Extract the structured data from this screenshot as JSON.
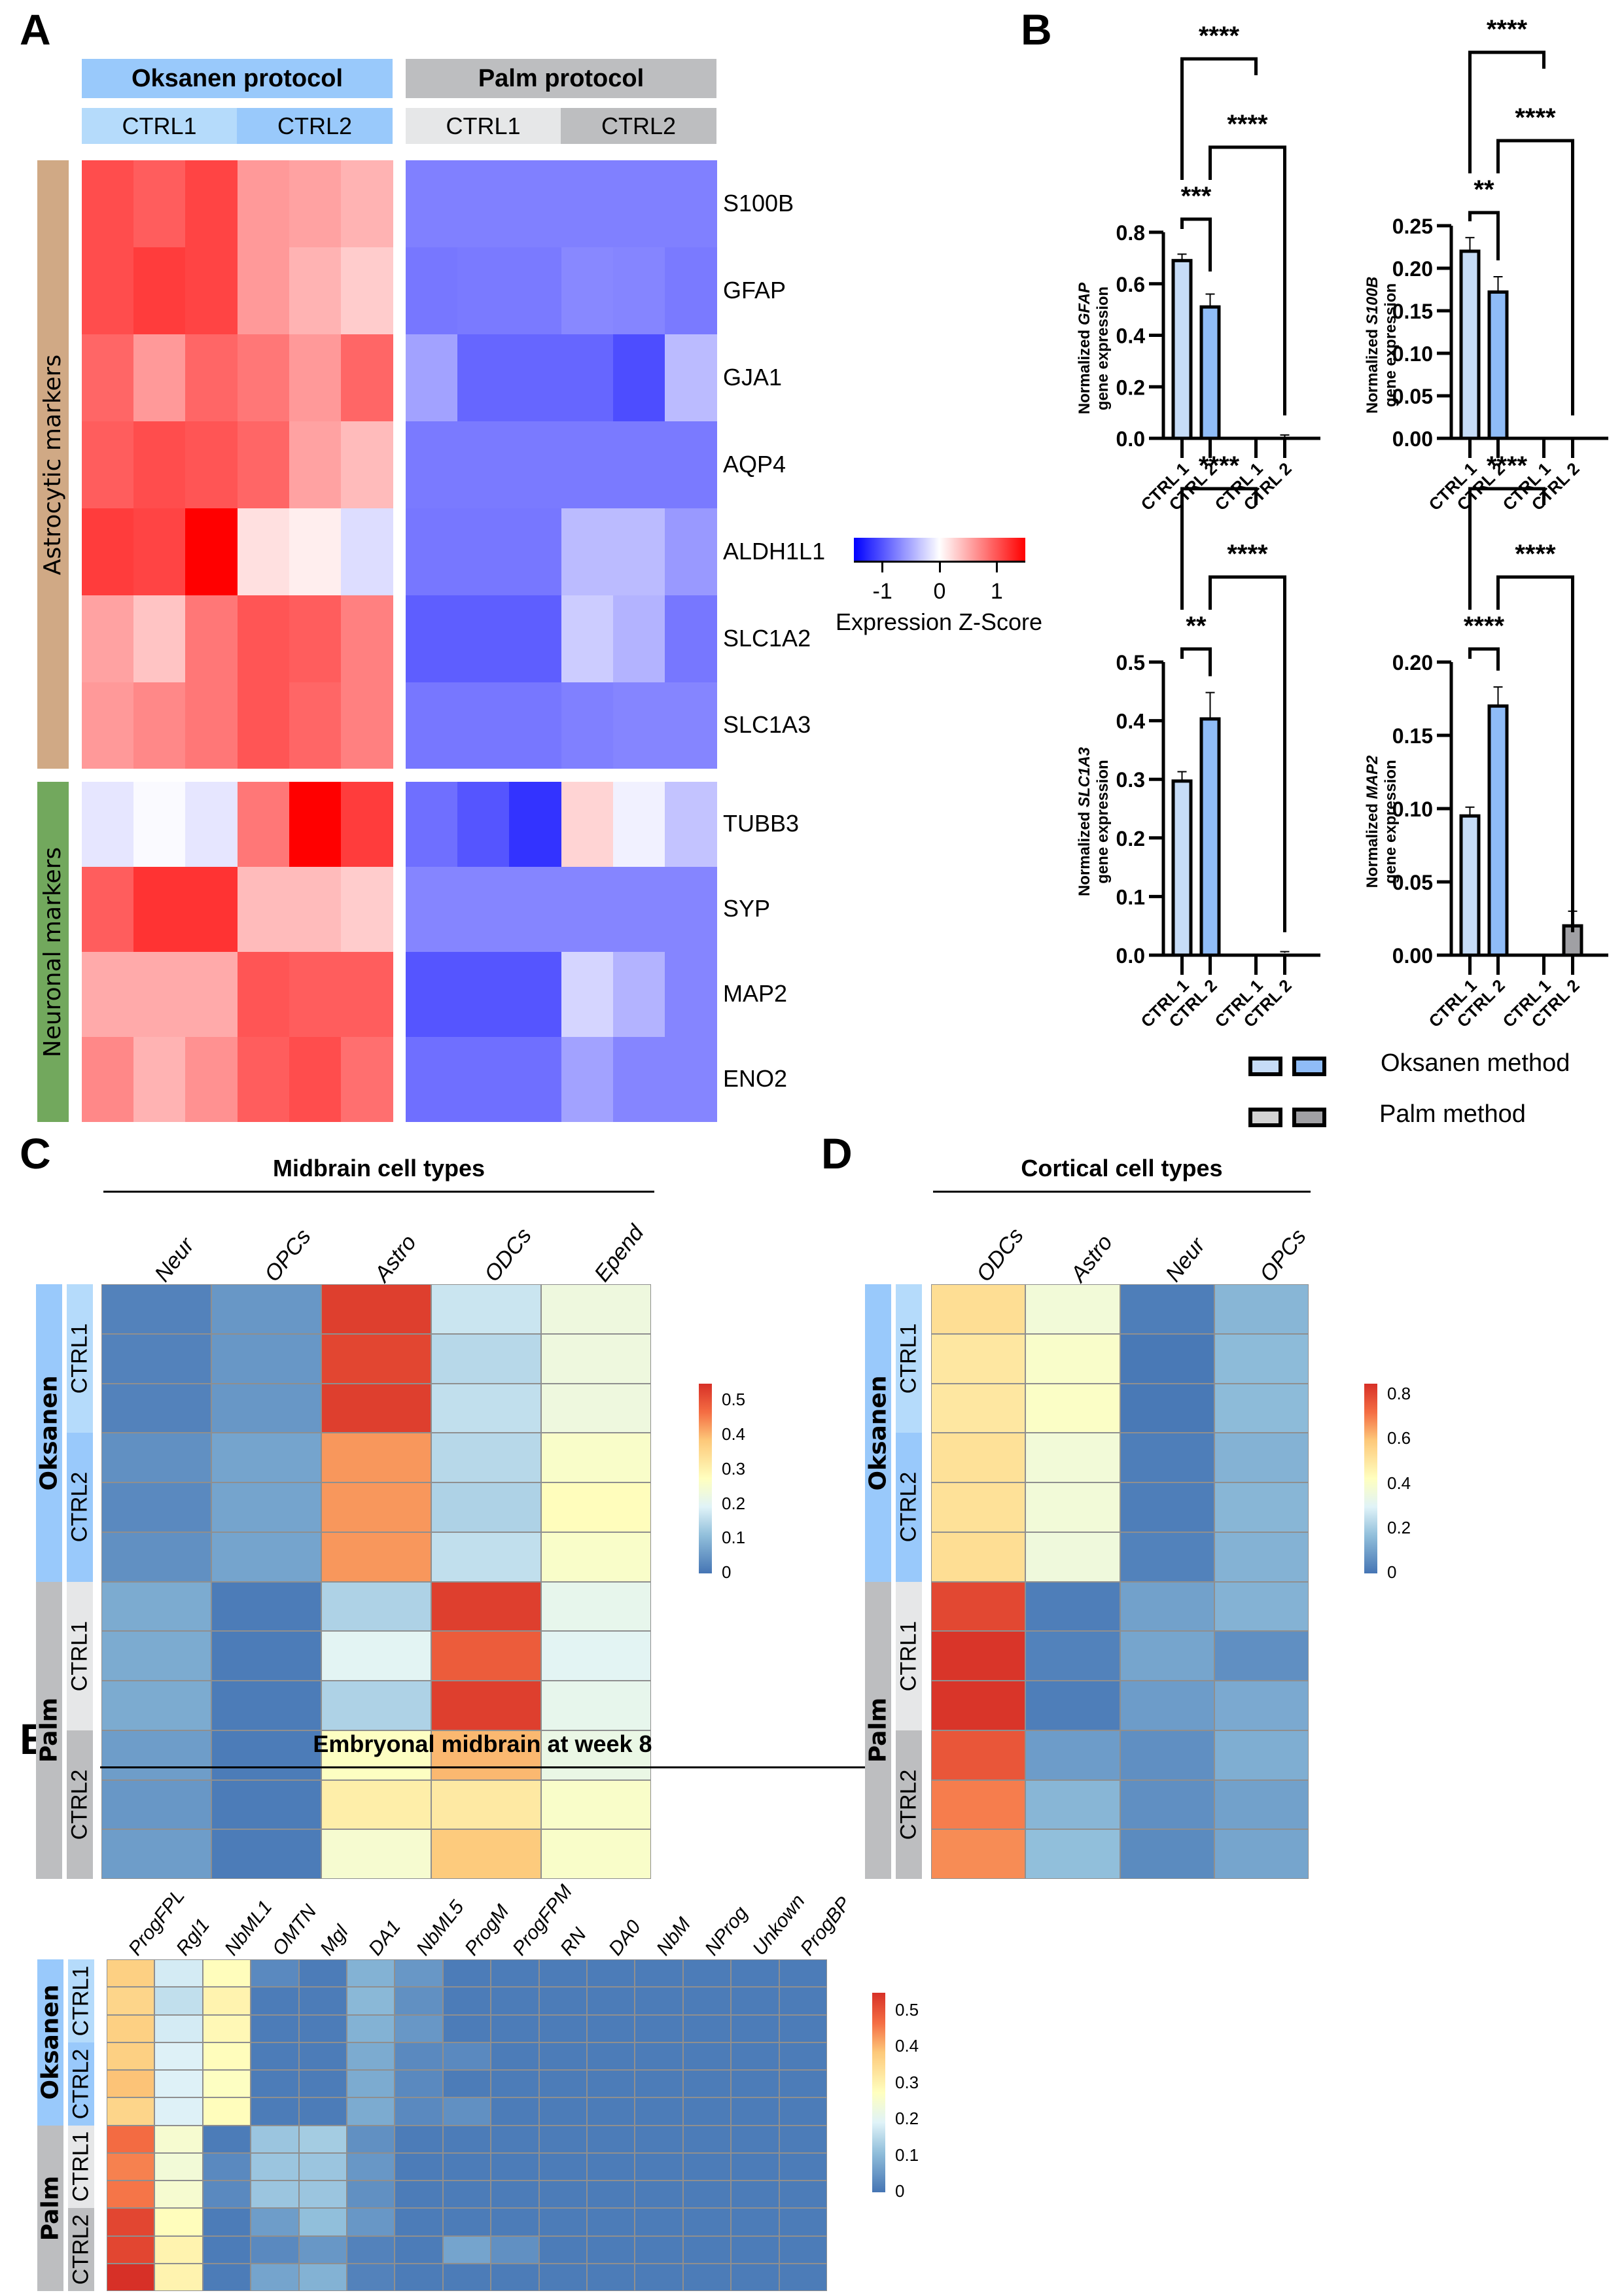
{
  "panels": {
    "A": "A",
    "B": "B",
    "C": "C",
    "D": "D",
    "E": "E"
  },
  "panelA": {
    "group_headers": [
      "Oksanen protocol",
      "Palm protocol"
    ],
    "sub_headers": [
      "CTRL1",
      "CTRL2",
      "CTRL1",
      "CTRL2"
    ],
    "row_groups": [
      "Astrocytic markers",
      "Neuronal markers"
    ],
    "genes": [
      "S100B",
      "GFAP",
      "GJA1",
      "AQP4",
      "ALDH1L1",
      "SLC1A2",
      "SLC1A3",
      "TUBB3",
      "SYP",
      "MAP2",
      "ENO2"
    ],
    "colorbar": {
      "ticks": [
        "-1",
        "0",
        "1"
      ],
      "title": "Expression Z-Score",
      "low": "#0000ff",
      "mid": "#ffffff",
      "high": "#ff0000"
    }
  },
  "panelB": {
    "legend": {
      "oksanen": "Oksanen method",
      "palm": "Palm method"
    },
    "colors": {
      "oksanen1": "#c6dcf7",
      "oksanen2": "#8fbcf7",
      "palm1": "#d3d3d3",
      "palm2": "#a0a0a4"
    }
  },
  "panelC": {
    "title": "Midbrain cell types",
    "group_labels": [
      "Oksanen",
      "Palm"
    ],
    "sub_labels": [
      "CTRL1",
      "CTRL2",
      "CTRL1",
      "CTRL2"
    ]
  },
  "panelD": {
    "title": "Cortical cell types",
    "group_labels": [
      "Oksanen",
      "Palm"
    ],
    "sub_labels": [
      "CTRL1",
      "CTRL2",
      "CTRL1",
      "CTRL2"
    ]
  },
  "panelE": {
    "title": "Embryonal midbrain at week 8",
    "group_labels": [
      "Oksanen",
      "Palm"
    ],
    "sub_labels": [
      "CTRL1",
      "CTRL2",
      "CTRL1",
      "CTRL2"
    ]
  },
  "chart_data": [
    {
      "id": "A",
      "type": "heatmap",
      "title": "",
      "columns": [
        "Oksanen CTRL1 r1",
        "Oksanen CTRL1 r2",
        "Oksanen CTRL1 r3",
        "Oksanen CTRL2 r1",
        "Oksanen CTRL2 r2",
        "Oksanen CTRL2 r3",
        "Palm CTRL1 r1",
        "Palm CTRL1 r2",
        "Palm CTRL1 r3",
        "Palm CTRL2 r1",
        "Palm CTRL2 r2",
        "Palm CTRL2 r3"
      ],
      "rows": [
        "S100B",
        "GFAP",
        "GJA1",
        "AQP4",
        "ALDH1L1",
        "SLC1A2",
        "SLC1A3",
        "TUBB3",
        "SYP",
        "MAP2",
        "ENO2"
      ],
      "colorbar_label": "Expression Z-Score",
      "range": [
        -1.5,
        1.5
      ],
      "values": [
        [
          1.05,
          0.95,
          1.1,
          0.6,
          0.55,
          0.45,
          -0.75,
          -0.75,
          -0.75,
          -0.75,
          -0.75,
          -0.75
        ],
        [
          1.05,
          1.15,
          1.1,
          0.6,
          0.45,
          0.3,
          -0.8,
          -0.78,
          -0.78,
          -0.7,
          -0.72,
          -0.78
        ],
        [
          0.9,
          0.6,
          0.9,
          0.8,
          0.6,
          0.9,
          -0.55,
          -0.9,
          -0.9,
          -0.9,
          -1.05,
          -0.4
        ],
        [
          0.95,
          1.05,
          1.0,
          0.9,
          0.55,
          0.4,
          -0.78,
          -0.78,
          -0.78,
          -0.78,
          -0.78,
          -0.78
        ],
        [
          1.15,
          1.1,
          1.5,
          0.18,
          0.1,
          -0.2,
          -0.8,
          -0.8,
          -0.8,
          -0.4,
          -0.4,
          -0.6
        ],
        [
          0.55,
          0.35,
          0.8,
          1.0,
          0.95,
          0.75,
          -0.95,
          -0.95,
          -0.95,
          -0.3,
          -0.45,
          -0.8
        ],
        [
          0.6,
          0.7,
          0.8,
          1.0,
          0.9,
          0.75,
          -0.8,
          -0.8,
          -0.8,
          -0.75,
          -0.72,
          -0.72
        ],
        [
          -0.15,
          -0.03,
          -0.15,
          0.8,
          1.5,
          1.15,
          -0.85,
          -1.0,
          -1.2,
          0.25,
          -0.08,
          -0.35
        ],
        [
          0.95,
          1.2,
          1.2,
          0.4,
          0.4,
          0.3,
          -0.72,
          -0.72,
          -0.72,
          -0.72,
          -0.72,
          -0.72
        ],
        [
          0.5,
          0.5,
          0.5,
          1.0,
          0.95,
          0.95,
          -1.0,
          -1.0,
          -1.0,
          -0.25,
          -0.45,
          -0.72
        ],
        [
          0.7,
          0.45,
          0.65,
          0.95,
          1.05,
          0.85,
          -0.85,
          -0.85,
          -0.85,
          -0.55,
          -0.72,
          -0.72
        ]
      ]
    },
    {
      "id": "B-GFAP",
      "type": "bar",
      "categories": [
        "CTRL 1",
        "CTRL 2",
        "CTRL 1",
        "CTRL 2"
      ],
      "groups": [
        "Oksanen",
        "Oksanen",
        "Palm",
        "Palm"
      ],
      "values": [
        0.69,
        0.51,
        0.0,
        0.003
      ],
      "errors": [
        0.025,
        0.05,
        0.0,
        0.01
      ],
      "ylabel": "Normalized GFAP gene expression",
      "ylabel_italic": "GFAP",
      "ylim": [
        0,
        0.8
      ],
      "yticks": [
        "0.0",
        "0.2",
        "0.4",
        "0.6",
        "0.8"
      ],
      "significance": [
        {
          "from": 0,
          "to": 1,
          "label": "***"
        },
        {
          "from": 0,
          "to": 2,
          "label": "****"
        },
        {
          "from": 1,
          "to": 3,
          "label": "****"
        }
      ]
    },
    {
      "id": "B-S100B",
      "type": "bar",
      "categories": [
        "CTRL 1",
        "CTRL 2",
        "CTRL 1",
        "CTRL 2"
      ],
      "groups": [
        "Oksanen",
        "Oksanen",
        "Palm",
        "Palm"
      ],
      "values": [
        0.22,
        0.172,
        0.0,
        0.0
      ],
      "errors": [
        0.016,
        0.018,
        0.0,
        0.0
      ],
      "ylabel": "Normalized S100B gene expression",
      "ylabel_italic": "S100B",
      "ylim": [
        0,
        0.25
      ],
      "yticks": [
        "0.00",
        "0.05",
        "0.10",
        "0.15",
        "0.20",
        "0.25"
      ],
      "significance": [
        {
          "from": 0,
          "to": 1,
          "label": "**"
        },
        {
          "from": 0,
          "to": 2,
          "label": "****"
        },
        {
          "from": 1,
          "to": 3,
          "label": "****"
        }
      ]
    },
    {
      "id": "B-SLC1A3",
      "type": "bar",
      "categories": [
        "CTRL 1",
        "CTRL 2",
        "CTRL 1",
        "CTRL 2"
      ],
      "groups": [
        "Oksanen",
        "Oksanen",
        "Palm",
        "Palm"
      ],
      "values": [
        0.297,
        0.403,
        0.0,
        0.004
      ],
      "errors": [
        0.016,
        0.045,
        0.0,
        0.002
      ],
      "ylabel": "Normalized SLC1A3 gene expression",
      "ylabel_italic": "SLC1A3",
      "ylim": [
        0,
        0.5
      ],
      "yticks": [
        "0.0",
        "0.1",
        "0.2",
        "0.3",
        "0.4",
        "0.5"
      ],
      "significance": [
        {
          "from": 0,
          "to": 1,
          "label": "**"
        },
        {
          "from": 0,
          "to": 2,
          "label": "****"
        },
        {
          "from": 1,
          "to": 3,
          "label": "****"
        }
      ]
    },
    {
      "id": "B-MAP2",
      "type": "bar",
      "categories": [
        "CTRL 1",
        "CTRL 2",
        "CTRL 1",
        "CTRL 2"
      ],
      "groups": [
        "Oksanen",
        "Oksanen",
        "Palm",
        "Palm"
      ],
      "values": [
        0.095,
        0.17,
        0.0,
        0.02
      ],
      "errors": [
        0.006,
        0.013,
        0.0,
        0.01
      ],
      "ylabel": "Normalized MAP2 gene expression",
      "ylabel_italic": "MAP2",
      "ylim": [
        0,
        0.2
      ],
      "yticks": [
        "0.00",
        "0.05",
        "0.10",
        "0.15",
        "0.20"
      ],
      "significance": [
        {
          "from": 0,
          "to": 1,
          "label": "****"
        },
        {
          "from": 0,
          "to": 2,
          "label": "****"
        },
        {
          "from": 1,
          "to": 3,
          "label": "****"
        }
      ]
    },
    {
      "id": "C",
      "type": "heatmap",
      "title": "Midbrain cell types",
      "columns": [
        "Neur",
        "OPCs",
        "Astro",
        "ODCs",
        "Epend"
      ],
      "rows": [
        "Oksanen CTRL1 r1",
        "Oksanen CTRL1 r2",
        "Oksanen CTRL1 r3",
        "Oksanen CTRL2 r1",
        "Oksanen CTRL2 r2",
        "Oksanen CTRL2 r3",
        "Palm CTRL1 r1",
        "Palm CTRL1 r2",
        "Palm CTRL1 r3",
        "Palm CTRL2 r1",
        "Palm CTRL2 r2",
        "Palm CTRL2 r3"
      ],
      "colorbar_ticks": [
        "0",
        "0.1",
        "0.2",
        "0.3",
        "0.4",
        "0.5"
      ],
      "range": [
        0,
        0.55
      ],
      "values": [
        [
          0.02,
          0.05,
          0.53,
          0.17,
          0.23
        ],
        [
          0.02,
          0.05,
          0.52,
          0.15,
          0.23
        ],
        [
          0.02,
          0.05,
          0.53,
          0.16,
          0.23
        ],
        [
          0.04,
          0.07,
          0.43,
          0.15,
          0.26
        ],
        [
          0.03,
          0.07,
          0.43,
          0.14,
          0.28
        ],
        [
          0.04,
          0.07,
          0.43,
          0.16,
          0.26
        ],
        [
          0.08,
          0.01,
          0.14,
          0.53,
          0.21
        ],
        [
          0.08,
          0.01,
          0.2,
          0.49,
          0.2
        ],
        [
          0.08,
          0.01,
          0.14,
          0.53,
          0.21
        ],
        [
          0.06,
          0.01,
          0.27,
          0.4,
          0.22
        ],
        [
          0.05,
          0.01,
          0.31,
          0.32,
          0.26
        ],
        [
          0.06,
          0.01,
          0.25,
          0.38,
          0.26
        ]
      ]
    },
    {
      "id": "D",
      "type": "heatmap",
      "title": "Cortical cell types",
      "columns": [
        "ODCs",
        "Astro",
        "Neur",
        "OPCs"
      ],
      "rows": [
        "Oksanen CTRL1 r1",
        "Oksanen CTRL1 r2",
        "Oksanen CTRL1 r3",
        "Oksanen CTRL2 r1",
        "Oksanen CTRL2 r2",
        "Oksanen CTRL2 r3",
        "Palm CTRL1 r1",
        "Palm CTRL1 r2",
        "Palm CTRL1 r3",
        "Palm CTRL2 r1",
        "Palm CTRL2 r2",
        "Palm CTRL2 r3"
      ],
      "colorbar_ticks": [
        "0",
        "0.2",
        "0.4",
        "0.6",
        "0.8"
      ],
      "range": [
        0,
        0.85
      ],
      "values": [
        [
          0.53,
          0.37,
          0.02,
          0.15
        ],
        [
          0.5,
          0.4,
          0.01,
          0.16
        ],
        [
          0.5,
          0.41,
          0.01,
          0.16
        ],
        [
          0.52,
          0.37,
          0.02,
          0.14
        ],
        [
          0.52,
          0.37,
          0.02,
          0.15
        ],
        [
          0.53,
          0.36,
          0.03,
          0.14
        ],
        [
          0.8,
          0.02,
          0.1,
          0.14
        ],
        [
          0.84,
          0.03,
          0.11,
          0.06
        ],
        [
          0.84,
          0.02,
          0.09,
          0.12
        ],
        [
          0.77,
          0.09,
          0.06,
          0.13
        ],
        [
          0.7,
          0.15,
          0.06,
          0.1
        ],
        [
          0.68,
          0.17,
          0.05,
          0.11
        ]
      ]
    },
    {
      "id": "E",
      "type": "heatmap",
      "title": "Embryonal midbrain at week 8",
      "columns": [
        "ProgFPL",
        "Rgl1",
        "NbML1",
        "OMTN",
        "Mgl",
        "DA1",
        "NbML5",
        "ProgM",
        "ProgFPM",
        "RN",
        "DA0",
        "NbM",
        "NProg",
        "Unkown",
        "ProgBP"
      ],
      "rows": [
        "Oksanen CTRL1 r1",
        "Oksanen CTRL1 r2",
        "Oksanen CTRL1 r3",
        "Oksanen CTRL2 r1",
        "Oksanen CTRL2 r2",
        "Oksanen CTRL2 r3",
        "Palm CTRL1 r1",
        "Palm CTRL1 r2",
        "Palm CTRL1 r3",
        "Palm CTRL2 r1",
        "Palm CTRL2 r2",
        "Palm CTRL2 r3"
      ],
      "colorbar_ticks": [
        "0",
        "0.1",
        "0.2",
        "0.3",
        "0.4",
        "0.5"
      ],
      "range": [
        0,
        0.55
      ],
      "values": [
        [
          0.37,
          0.18,
          0.28,
          0.03,
          0.01,
          0.09,
          0.05,
          0.01,
          0.01,
          0.01,
          0.01,
          0.01,
          0.01,
          0.01,
          0.01
        ],
        [
          0.36,
          0.16,
          0.3,
          0.01,
          0.01,
          0.1,
          0.04,
          0.01,
          0.01,
          0.01,
          0.01,
          0.01,
          0.01,
          0.01,
          0.01
        ],
        [
          0.37,
          0.18,
          0.29,
          0.01,
          0.01,
          0.09,
          0.05,
          0.01,
          0.01,
          0.01,
          0.01,
          0.01,
          0.01,
          0.01,
          0.01
        ],
        [
          0.37,
          0.19,
          0.28,
          0.01,
          0.01,
          0.08,
          0.03,
          0.03,
          0.01,
          0.01,
          0.01,
          0.01,
          0.01,
          0.01,
          0.01
        ],
        [
          0.39,
          0.19,
          0.27,
          0.01,
          0.01,
          0.08,
          0.03,
          0.01,
          0.01,
          0.01,
          0.01,
          0.01,
          0.01,
          0.01,
          0.01
        ],
        [
          0.36,
          0.19,
          0.28,
          0.01,
          0.01,
          0.08,
          0.03,
          0.04,
          0.01,
          0.01,
          0.01,
          0.01,
          0.01,
          0.01,
          0.01
        ],
        [
          0.47,
          0.25,
          0.01,
          0.12,
          0.13,
          0.04,
          0.01,
          0.01,
          0.01,
          0.01,
          0.01,
          0.01,
          0.01,
          0.01,
          0.01
        ],
        [
          0.45,
          0.24,
          0.03,
          0.12,
          0.12,
          0.05,
          0.01,
          0.01,
          0.01,
          0.01,
          0.01,
          0.01,
          0.01,
          0.01,
          0.01
        ],
        [
          0.46,
          0.25,
          0.03,
          0.12,
          0.12,
          0.04,
          0.01,
          0.01,
          0.01,
          0.01,
          0.01,
          0.01,
          0.01,
          0.01,
          0.01
        ],
        [
          0.52,
          0.28,
          0.01,
          0.06,
          0.11,
          0.05,
          0.01,
          0.01,
          0.01,
          0.01,
          0.01,
          0.01,
          0.01,
          0.01,
          0.01
        ],
        [
          0.52,
          0.3,
          0.01,
          0.03,
          0.05,
          0.02,
          0.01,
          0.07,
          0.04,
          0.01,
          0.01,
          0.01,
          0.01,
          0.01,
          0.01
        ],
        [
          0.55,
          0.3,
          0.01,
          0.07,
          0.09,
          0.02,
          0.01,
          0.01,
          0.01,
          0.01,
          0.01,
          0.01,
          0.01,
          0.01,
          0.01
        ]
      ]
    }
  ]
}
